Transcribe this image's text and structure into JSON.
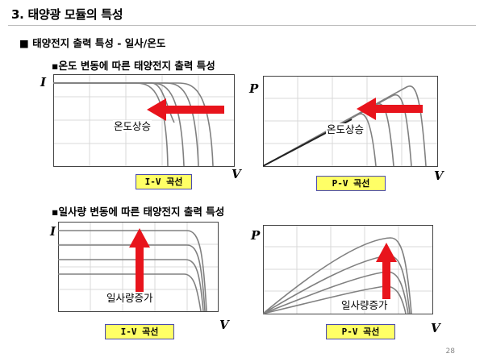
{
  "slide": {
    "title": "3. 태양광 모듈의 특성",
    "subtitle": "■ 태양전지 출력 특성  -  일사/온도",
    "page_number": "28"
  },
  "temp_section": {
    "heading": "▪온도 변동에 따른 태양전지 출력 특성",
    "iv": {
      "y_axis": "I",
      "x_axis": "V",
      "annotation": "온도상승",
      "caption": "I-V  곡선"
    },
    "pv": {
      "y_axis": "P",
      "x_axis": "V",
      "annotation": "온도상승",
      "caption": "P-V  곡선"
    }
  },
  "irr_section": {
    "heading": "▪일사량 변동에 따른 태양전지 출력 특성",
    "iv": {
      "y_axis": "I",
      "x_axis": "V",
      "annotation": "일사량증가",
      "caption": "I-V  곡선"
    },
    "pv": {
      "y_axis": "P",
      "x_axis": "V",
      "annotation": "일사량증가",
      "caption": "P-V  곡선"
    }
  },
  "colors": {
    "arrow": "#e8141c",
    "curve": "#7a7a7a",
    "badge_fill": "#ffff66",
    "badge_border": "#4a4ab0"
  }
}
